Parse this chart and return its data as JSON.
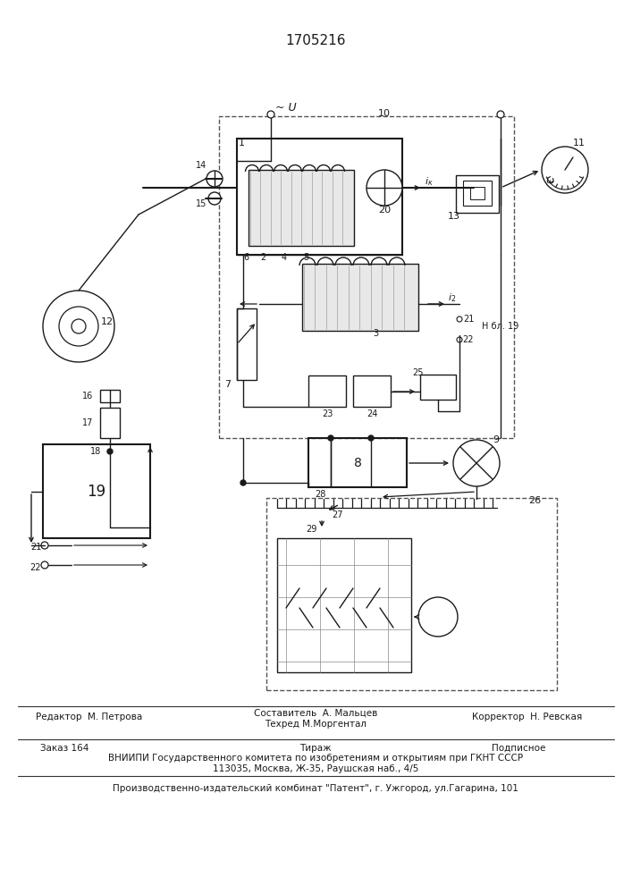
{
  "patent_number": "1705216",
  "background_color": "#ffffff",
  "line_color": "#1a1a1a",
  "footer_line1_left": "Редактор  М. Петрова",
  "footer_line1_center_top": "Составитель  А. Мальцев",
  "footer_line1_center_bot": "Техред М.Моргентал",
  "footer_line1_right": "Корректор  Н. Ревская",
  "footer_line2_1": "Заказ 164",
  "footer_line2_2": "Тираж",
  "footer_line2_3": "Подписное",
  "footer_line3": "ВНИИПИ Государственного комитета по изобретениям и открытиям при ГКНТ СССР",
  "footer_line4": "113035, Москва, Ж-35, Раушская наб., 4/5",
  "footer_line5": "Производственно-издательский комбинат \"Патент\", г. Ужгород, ул.Гагарина, 101"
}
